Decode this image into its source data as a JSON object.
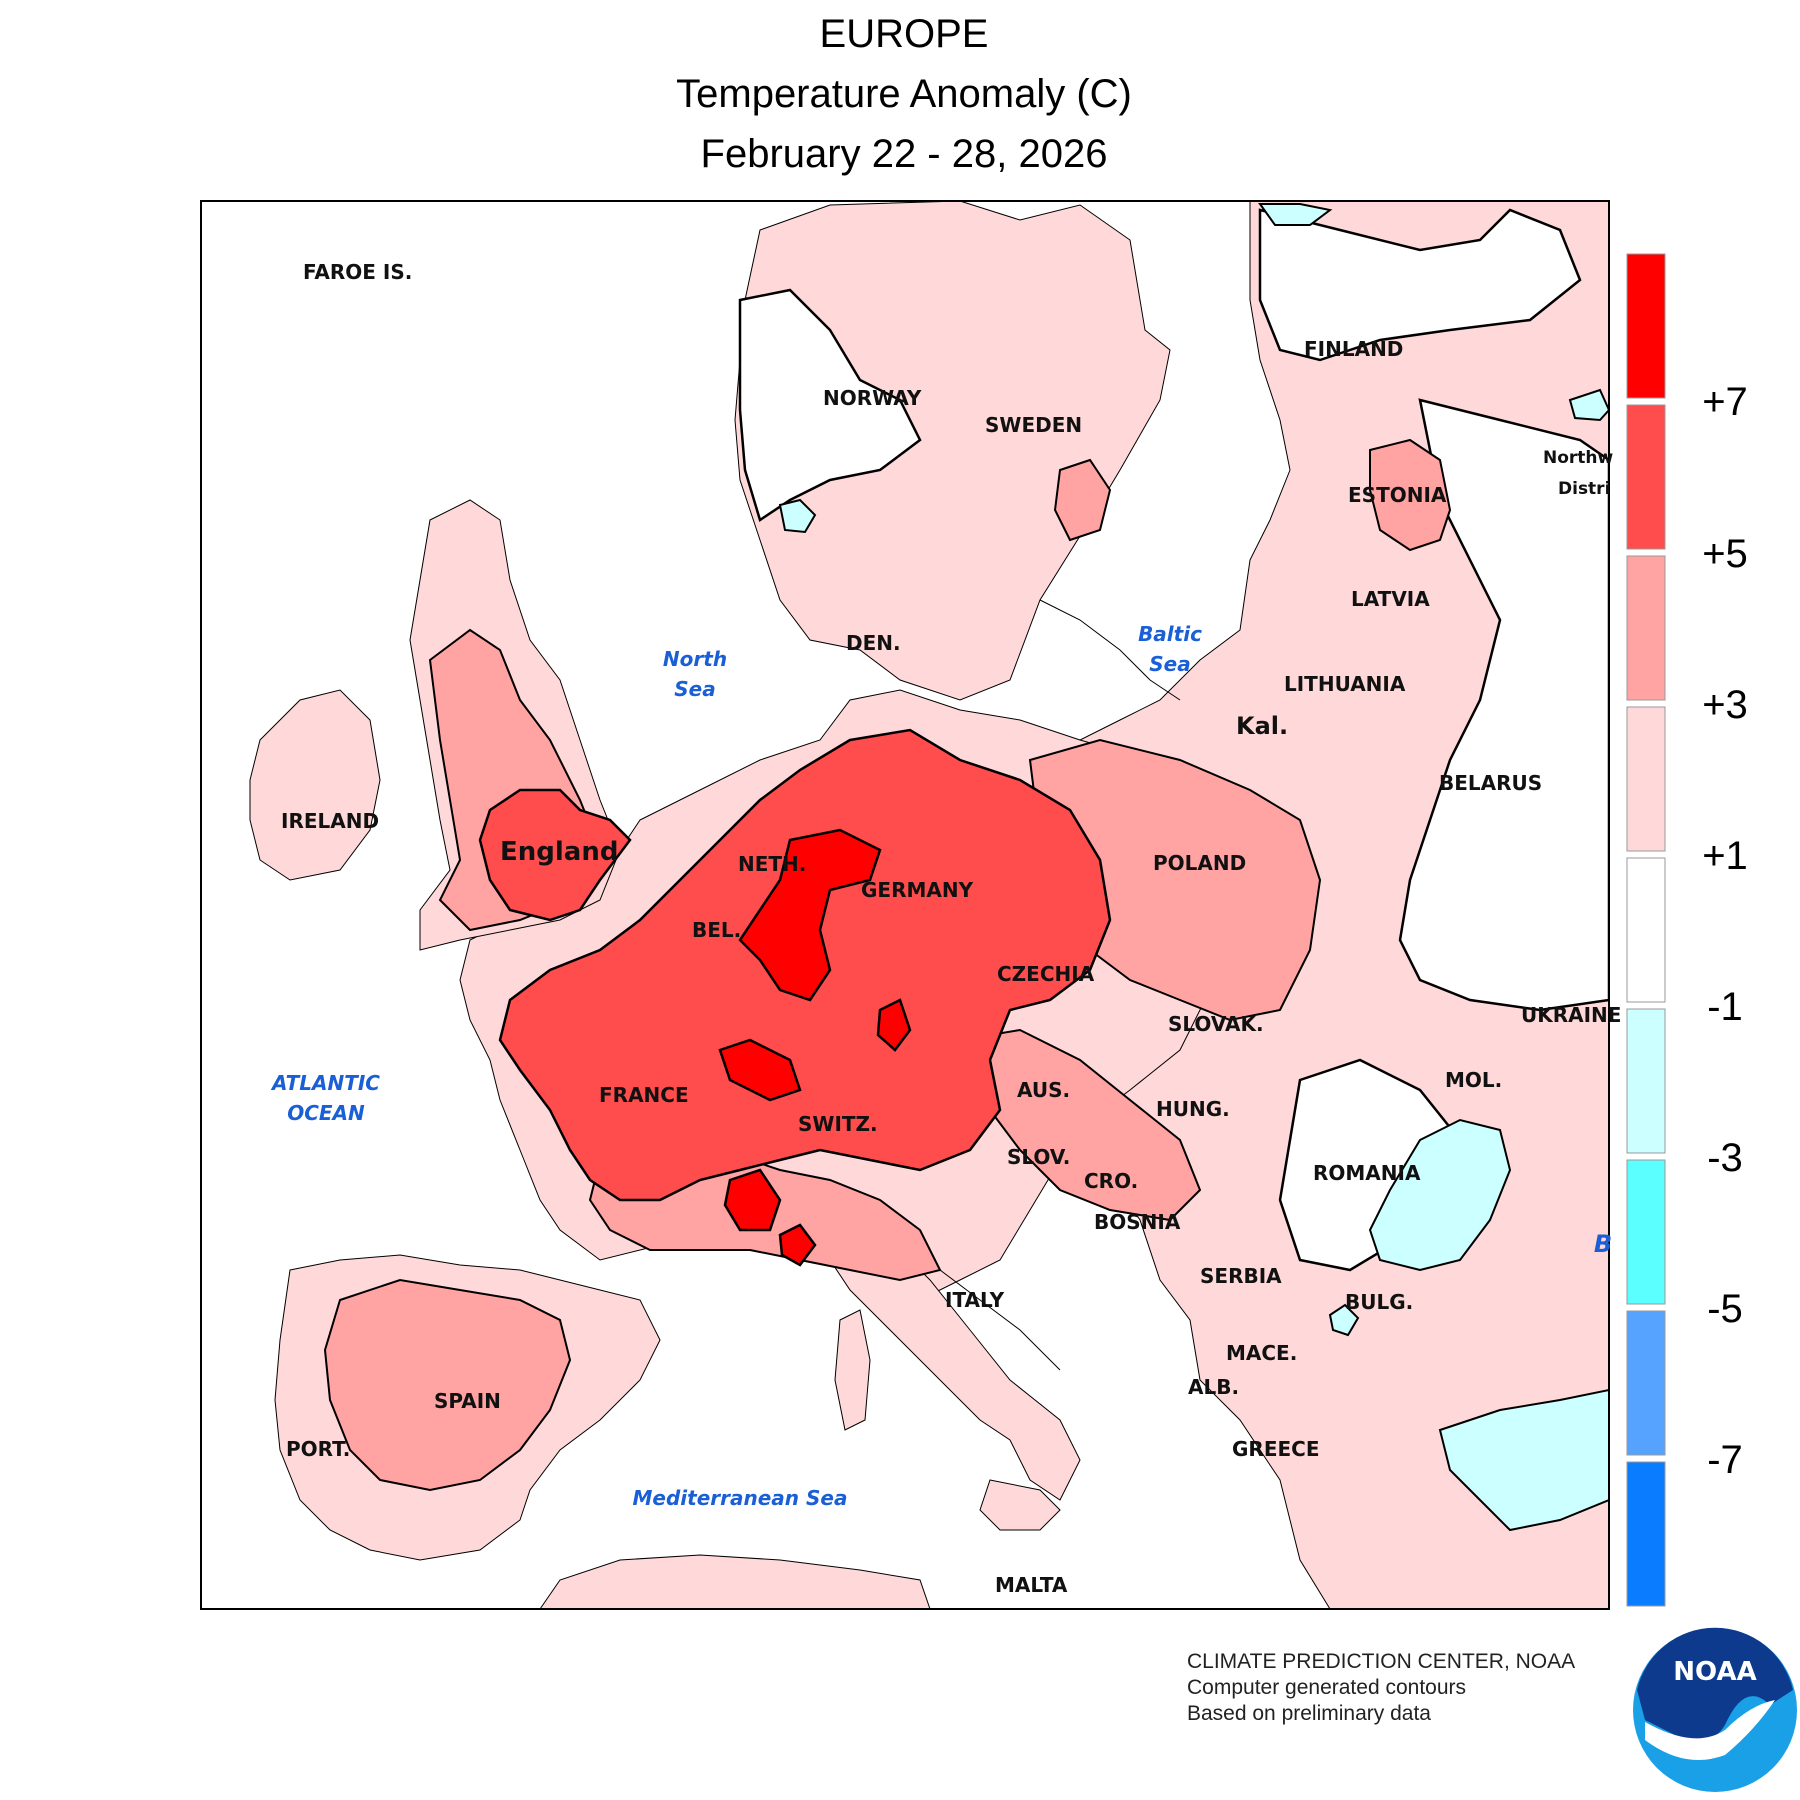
{
  "header": {
    "region": "EUROPE",
    "variable": "Temperature Anomaly (C)",
    "period": "February 22 - 28, 2026"
  },
  "legend": {
    "bins": [
      {
        "range": "> +7",
        "color": "#ff0000"
      },
      {
        "range": "+5 to +7",
        "color": "#ff4c4c"
      },
      {
        "range": "+3 to +5",
        "color": "#ffa3a3"
      },
      {
        "range": "+1 to +3",
        "color": "#ffd9d9"
      },
      {
        "range": "-1 to +1",
        "color": "#ffffff"
      },
      {
        "range": "-3 to -1",
        "color": "#ccffff"
      },
      {
        "range": "-5 to -3",
        "color": "#5cffff"
      },
      {
        "range": "-7 to -5",
        "color": "#55a3ff"
      },
      {
        "range": "< -7",
        "color": "#0a7cff"
      }
    ],
    "labels": [
      "+7",
      "+5",
      "+3",
      "+1",
      "-1",
      "-3",
      "-5",
      "-7"
    ]
  },
  "map": {
    "countries": {
      "faroe": "FAROE IS.",
      "norway": "NORWAY",
      "sweden": "SWEDEN",
      "finland": "FINLAND",
      "estonia": "ESTONIA",
      "latvia": "LATVIA",
      "lithuania": "LITHUANIA",
      "kaliningrad": "Kal.",
      "belarus": "BELARUS",
      "poland": "POLAND",
      "germany": "GERMANY",
      "denmark": "DEN.",
      "netherlands": "NETH.",
      "belgium": "BEL.",
      "czechia": "CZECHIA",
      "slovakia": "SLOVAK.",
      "ukraine": "UKRAINE",
      "moldova": "MOL.",
      "romania": "ROMANIA",
      "hungary": "HUNG.",
      "austria": "AUS.",
      "switzerland": "SWITZ.",
      "slovenia": "SLOV.",
      "croatia": "CRO.",
      "bosnia": "BOSNIA",
      "serbia": "SERBIA",
      "bulgaria": "BULG.",
      "macedonia": "MACE.",
      "albania": "ALB.",
      "greece": "GREECE",
      "italy": "ITALY",
      "france": "FRANCE",
      "spain": "SPAIN",
      "portugal": "PORT.",
      "ireland": "IRELAND",
      "england": "England",
      "malta": "MALTA",
      "northwest_1": "Northw",
      "northwest_2": "Distri"
    },
    "seas": {
      "north_1": "North",
      "north_2": "Sea",
      "baltic_1": "Baltic",
      "baltic_2": "Sea",
      "atlantic_1": "ATLANTIC",
      "atlantic_2": "OCEAN",
      "mediterranean": "Mediterranean Sea",
      "black_partial": "B"
    }
  },
  "footer": {
    "line1": "CLIMATE PREDICTION CENTER, NOAA",
    "line2": "Computer generated contours",
    "line3": "Based on preliminary data",
    "logo_text": "NOAA"
  },
  "colors": {
    "anomaly_above_7": "#ff0000",
    "anomaly_5_7": "#ff4c4c",
    "anomaly_3_5": "#ffa3a3",
    "anomaly_1_3": "#ffd9d9",
    "noaa_blue": "#0d3a8c",
    "noaa_light_blue": "#1aa0e6"
  }
}
